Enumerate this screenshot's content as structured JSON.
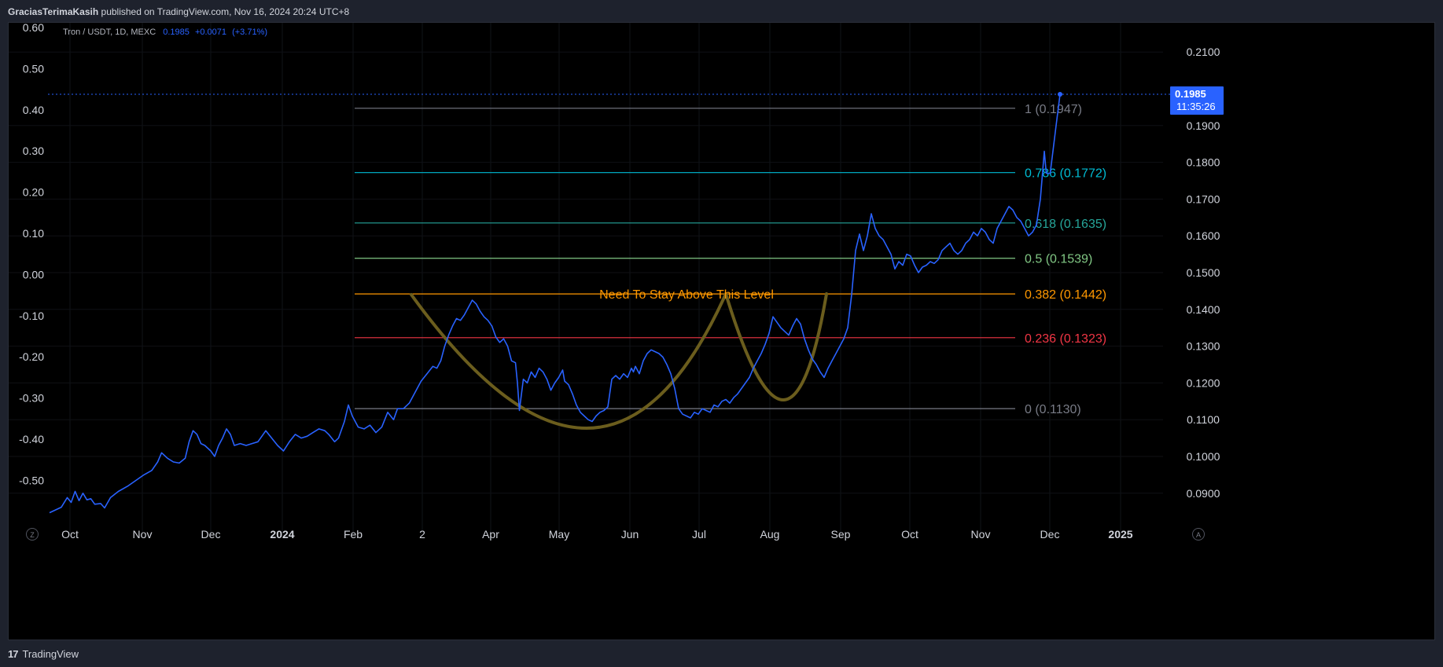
{
  "header": {
    "author": "GraciasTerimaKasih",
    "published_text": "published on TradingView.com, Nov 16, 2024 20:24 UTC+8"
  },
  "legend": {
    "symbol": "Tron / USDT, 1D, MEXC",
    "price": "0.1985",
    "change": "+0.0071",
    "change_pct": "(+3.71%)"
  },
  "price_tag": {
    "price": "0.1985",
    "countdown": "11:35:26"
  },
  "footer": {
    "brand": "TradingView",
    "left_button": "Z",
    "right_button": "A"
  },
  "colors": {
    "series": "#2962ff",
    "fib_1": "#787b86",
    "fib_786": "#00bcd4",
    "fib_618": "#26a69a",
    "fib_05": "#81c784",
    "fib_382": "#ff9800",
    "fib_236": "#f23645",
    "fib_0": "#787b86",
    "cup": "#6b5d1d",
    "annotation": "#ff9800"
  },
  "chart_data": {
    "type": "line",
    "x_labels": [
      "Oct",
      "Nov",
      "Dec",
      "2024",
      "Feb",
      "2",
      "Apr",
      "May",
      "Jun",
      "Jul",
      "Aug",
      "Sep",
      "Oct",
      "Nov",
      "Dec",
      "2025"
    ],
    "y_right_ticks": [
      "0.2100",
      "0.1900",
      "0.1800",
      "0.1700",
      "0.1600",
      "0.1500",
      "0.1400",
      "0.1300",
      "0.1200",
      "0.1100",
      "0.1000",
      "0.0900"
    ],
    "y_left_ticks": [
      "0.60",
      "0.50",
      "0.40",
      "0.30",
      "0.20",
      "0.10",
      "0.00",
      "-0.10",
      "-0.20",
      "-0.30",
      "-0.40",
      "-0.50"
    ],
    "ylim": [
      0.084,
      0.2215
    ],
    "series": [
      {
        "values": [
          [
            0,
            0.0847
          ],
          [
            6,
            0.0862
          ],
          [
            9,
            0.0888
          ],
          [
            11,
            0.0875
          ],
          [
            13,
            0.0905
          ],
          [
            15,
            0.088
          ],
          [
            17,
            0.09
          ],
          [
            19,
            0.0882
          ],
          [
            21,
            0.0885
          ],
          [
            23,
            0.087
          ],
          [
            26,
            0.0872
          ],
          [
            28,
            0.086
          ],
          [
            31,
            0.0888
          ],
          [
            35,
            0.0905
          ],
          [
            40,
            0.092
          ],
          [
            44,
            0.0935
          ],
          [
            48,
            0.095
          ],
          [
            52,
            0.0962
          ],
          [
            55,
            0.0985
          ],
          [
            57,
            0.101
          ],
          [
            60,
            0.0995
          ],
          [
            63,
            0.0985
          ],
          [
            66,
            0.0982
          ],
          [
            69,
            0.0995
          ],
          [
            71,
            0.104
          ],
          [
            73,
            0.107
          ],
          [
            75,
            0.106
          ],
          [
            77,
            0.1035
          ],
          [
            79,
            0.103
          ],
          [
            82,
            0.1015
          ],
          [
            84,
            0.1
          ],
          [
            86,
            0.103
          ],
          [
            88,
            0.105
          ],
          [
            90,
            0.1075
          ],
          [
            92,
            0.106
          ],
          [
            94,
            0.103
          ],
          [
            97,
            0.1035
          ],
          [
            100,
            0.103
          ],
          [
            103,
            0.1035
          ],
          [
            106,
            0.104
          ],
          [
            108,
            0.1055
          ],
          [
            110,
            0.107
          ],
          [
            113,
            0.105
          ],
          [
            116,
            0.103
          ],
          [
            119,
            0.1015
          ],
          [
            122,
            0.104
          ],
          [
            125,
            0.106
          ],
          [
            128,
            0.105
          ],
          [
            131,
            0.1055
          ],
          [
            134,
            0.1065
          ],
          [
            137,
            0.1075
          ],
          [
            140,
            0.107
          ],
          [
            142,
            0.106
          ],
          [
            145,
            0.104
          ],
          [
            147,
            0.105
          ],
          [
            150,
            0.1095
          ],
          [
            152,
            0.114
          ],
          [
            154,
            0.111
          ],
          [
            157,
            0.108
          ],
          [
            160,
            0.1075
          ],
          [
            163,
            0.1085
          ],
          [
            166,
            0.1065
          ],
          [
            169,
            0.108
          ],
          [
            172,
            0.112
          ],
          [
            175,
            0.11
          ],
          [
            177,
            0.113
          ],
          [
            180,
            0.113
          ],
          [
            183,
            0.1145
          ],
          [
            186,
            0.1175
          ],
          [
            189,
            0.1205
          ],
          [
            192,
            0.1225
          ],
          [
            195,
            0.1245
          ],
          [
            197,
            0.124
          ],
          [
            199,
            0.126
          ],
          [
            201,
            0.13
          ],
          [
            203,
            0.133
          ],
          [
            205,
            0.1355
          ],
          [
            207,
            0.1375
          ],
          [
            209,
            0.137
          ],
          [
            211,
            0.1385
          ],
          [
            213,
            0.1405
          ],
          [
            215,
            0.1425
          ],
          [
            217,
            0.1415
          ],
          [
            219,
            0.1395
          ],
          [
            221,
            0.138
          ],
          [
            223,
            0.137
          ],
          [
            225,
            0.1355
          ],
          [
            227,
            0.1325
          ],
          [
            229,
            0.131
          ],
          [
            231,
            0.132
          ],
          [
            233,
            0.13
          ],
          [
            235,
            0.126
          ],
          [
            237,
            0.1255
          ],
          [
            238,
            0.12
          ],
          [
            239,
            0.1125
          ],
          [
            241,
            0.121
          ],
          [
            243,
            0.12
          ],
          [
            245,
            0.123
          ],
          [
            247,
            0.1215
          ],
          [
            249,
            0.124
          ],
          [
            251,
            0.123
          ],
          [
            253,
            0.121
          ],
          [
            255,
            0.118
          ],
          [
            257,
            0.12
          ],
          [
            259,
            0.1215
          ],
          [
            261,
            0.1235
          ],
          [
            262,
            0.1205
          ],
          [
            264,
            0.1195
          ],
          [
            266,
            0.117
          ],
          [
            268,
            0.114
          ],
          [
            270,
            0.112
          ],
          [
            272,
            0.111
          ],
          [
            274,
            0.11
          ],
          [
            276,
            0.1095
          ],
          [
            278,
            0.111
          ],
          [
            280,
            0.112
          ],
          [
            282,
            0.1125
          ],
          [
            284,
            0.1135
          ],
          [
            286,
            0.121
          ],
          [
            288,
            0.122
          ],
          [
            290,
            0.121
          ],
          [
            292,
            0.1225
          ],
          [
            294,
            0.1215
          ],
          [
            296,
            0.124
          ],
          [
            297,
            0.123
          ],
          [
            298,
            0.1245
          ],
          [
            300,
            0.1225
          ],
          [
            302,
            0.126
          ],
          [
            304,
            0.128
          ],
          [
            306,
            0.129
          ],
          [
            308,
            0.1285
          ],
          [
            310,
            0.128
          ],
          [
            312,
            0.127
          ],
          [
            314,
            0.125
          ],
          [
            316,
            0.1225
          ],
          [
            318,
            0.1185
          ],
          [
            320,
            0.113
          ],
          [
            322,
            0.1115
          ],
          [
            324,
            0.111
          ],
          [
            326,
            0.1105
          ],
          [
            328,
            0.112
          ],
          [
            330,
            0.1115
          ],
          [
            332,
            0.113
          ],
          [
            334,
            0.1125
          ],
          [
            336,
            0.112
          ],
          [
            338,
            0.114
          ],
          [
            340,
            0.1135
          ],
          [
            342,
            0.115
          ],
          [
            344,
            0.1155
          ],
          [
            346,
            0.1145
          ],
          [
            348,
            0.116
          ],
          [
            350,
            0.117
          ],
          [
            352,
            0.1185
          ],
          [
            354,
            0.12
          ],
          [
            356,
            0.1215
          ],
          [
            358,
            0.124
          ],
          [
            360,
            0.126
          ],
          [
            362,
            0.128
          ],
          [
            364,
            0.1305
          ],
          [
            366,
            0.1335
          ],
          [
            368,
            0.138
          ],
          [
            370,
            0.1365
          ],
          [
            372,
            0.135
          ],
          [
            374,
            0.134
          ],
          [
            376,
            0.133
          ],
          [
            378,
            0.1355
          ],
          [
            380,
            0.1375
          ],
          [
            382,
            0.136
          ],
          [
            384,
            0.132
          ],
          [
            386,
            0.129
          ],
          [
            388,
            0.1265
          ],
          [
            390,
            0.125
          ],
          [
            392,
            0.123
          ],
          [
            394,
            0.1215
          ],
          [
            396,
            0.124
          ],
          [
            398,
            0.126
          ],
          [
            400,
            0.128
          ],
          [
            402,
            0.13
          ],
          [
            404,
            0.132
          ],
          [
            406,
            0.135
          ],
          [
            408,
            0.144
          ],
          [
            410,
            0.156
          ],
          [
            412,
            0.1605
          ],
          [
            414,
            0.156
          ],
          [
            416,
            0.16
          ],
          [
            418,
            0.166
          ],
          [
            420,
            0.162
          ],
          [
            422,
            0.16
          ],
          [
            424,
            0.159
          ],
          [
            426,
            0.157
          ],
          [
            428,
            0.155
          ],
          [
            430,
            0.151
          ],
          [
            432,
            0.153
          ],
          [
            434,
            0.152
          ],
          [
            436,
            0.155
          ],
          [
            438,
            0.1545
          ],
          [
            440,
            0.152
          ],
          [
            442,
            0.15
          ],
          [
            444,
            0.1515
          ],
          [
            446,
            0.152
          ],
          [
            448,
            0.153
          ],
          [
            450,
            0.1525
          ],
          [
            452,
            0.1535
          ],
          [
            454,
            0.156
          ],
          [
            456,
            0.157
          ],
          [
            458,
            0.158
          ],
          [
            460,
            0.156
          ],
          [
            462,
            0.155
          ],
          [
            464,
            0.156
          ],
          [
            466,
            0.158
          ],
          [
            468,
            0.159
          ],
          [
            470,
            0.161
          ],
          [
            472,
            0.16
          ],
          [
            474,
            0.162
          ],
          [
            476,
            0.161
          ],
          [
            478,
            0.159
          ],
          [
            480,
            0.158
          ],
          [
            482,
            0.162
          ],
          [
            484,
            0.164
          ],
          [
            486,
            0.166
          ],
          [
            488,
            0.168
          ],
          [
            490,
            0.167
          ],
          [
            492,
            0.165
          ],
          [
            494,
            0.164
          ],
          [
            496,
            0.162
          ],
          [
            498,
            0.16
          ],
          [
            500,
            0.161
          ],
          [
            502,
            0.163
          ],
          [
            504,
            0.17
          ],
          [
            506,
            0.183
          ],
          [
            507,
            0.177
          ],
          [
            509,
            0.177
          ],
          [
            512,
            0.19
          ],
          [
            514,
            0.1985
          ]
        ]
      }
    ],
    "fib_levels": [
      {
        "ratio": "1",
        "value": 0.1947,
        "label": "1 (0.1947)"
      },
      {
        "ratio": "0.786",
        "value": 0.1772,
        "label": "0.786 (0.1772)"
      },
      {
        "ratio": "0.618",
        "value": 0.1635,
        "label": "0.618 (0.1635)"
      },
      {
        "ratio": "0.5",
        "value": 0.1539,
        "label": "0.5 (0.1539)"
      },
      {
        "ratio": "0.382",
        "value": 0.1442,
        "label": "0.382 (0.1442)"
      },
      {
        "ratio": "0.236",
        "value": 0.1323,
        "label": "0.236 (0.1323)"
      },
      {
        "ratio": "0",
        "value": 0.113,
        "label": "0 (0.1130)"
      }
    ],
    "current_price_line": 0.1985,
    "annotation": "Need To Stay Above This Level"
  }
}
